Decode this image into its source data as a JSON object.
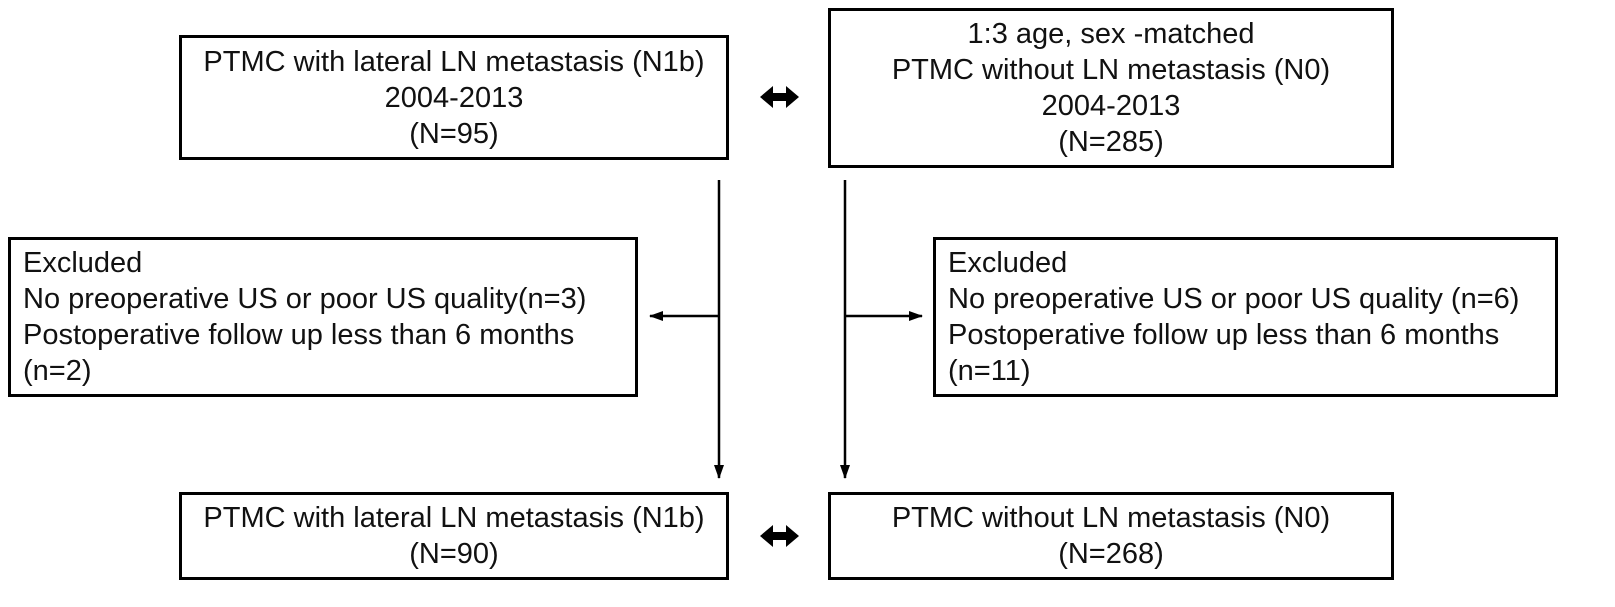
{
  "top_left": {
    "line1": "PTMC with lateral LN metastasis (N1b)",
    "line2": "2004-2013",
    "line3": "(N=95)"
  },
  "top_right": {
    "line1": "1:3 age, sex -matched",
    "line2": "PTMC without LN metastasis (N0)",
    "line3": "2004-2013",
    "line4": "(N=285)"
  },
  "excl_left": {
    "line1": "Excluded",
    "line2": "No preoperative US or poor US quality(n=3)",
    "line3": "Postoperative follow up less than 6 months",
    "line4": "(n=2)"
  },
  "excl_right": {
    "line1": "Excluded",
    "line2": "No preoperative US or poor US quality (n=6)",
    "line3": "Postoperative follow up less than 6 months",
    "line4": "(n=11)"
  },
  "bottom_left": {
    "line1": "PTMC with lateral LN metastasis (N1b)",
    "line2": "(N=90)"
  },
  "bottom_right": {
    "line1": "PTMC without LN metastasis (N0)",
    "line2": "(N=268)"
  },
  "connector_icon": "double-headed-arrow-icon"
}
